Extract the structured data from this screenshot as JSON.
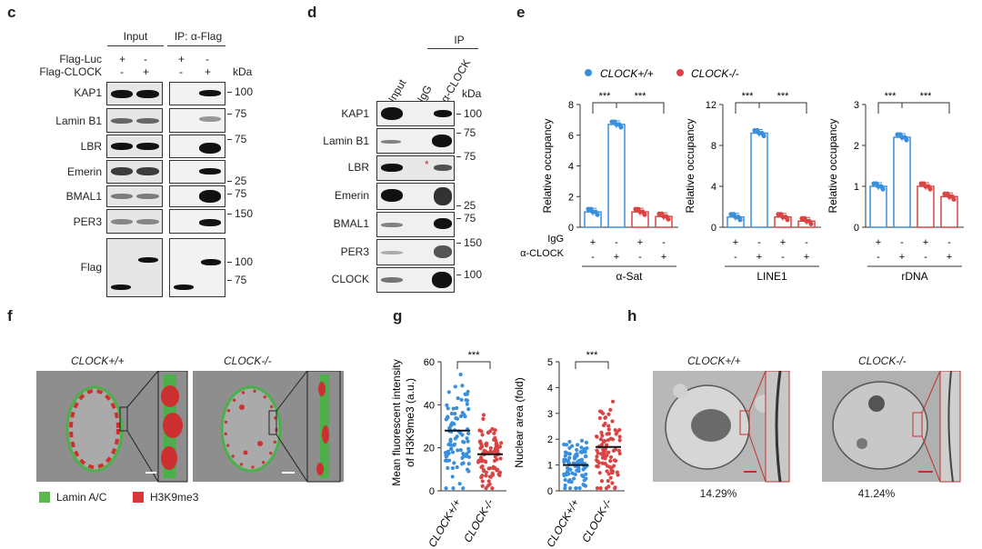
{
  "panels": {
    "c": "c",
    "d": "d",
    "e": "e",
    "f": "f",
    "g": "g",
    "h": "h"
  },
  "c": {
    "input_header": "Input",
    "ip_header": "IP: α-Flag",
    "row_labels": [
      "Flag-Luc",
      "Flag-CLOCK"
    ],
    "signs": {
      "luc": [
        "+",
        "-",
        "+",
        "-"
      ],
      "clock": [
        "-",
        "+",
        "-",
        "+"
      ]
    },
    "kda": "kDa",
    "blots": [
      "KAP1",
      "Lamin B1",
      "LBR",
      "Emerin",
      "BMAL1",
      "PER3",
      "Flag"
    ],
    "markers": [
      "100",
      "75",
      "75",
      "25",
      "75",
      "150",
      "100",
      "75"
    ]
  },
  "d": {
    "ip_header": "IP",
    "lanes": [
      "Input",
      "IgG",
      "α-CLOCK"
    ],
    "kda": "kDa",
    "blots": [
      "KAP1",
      "Lamin B1",
      "LBR",
      "Emerin",
      "BMAL1",
      "PER3",
      "CLOCK"
    ],
    "markers": [
      "100",
      "75",
      "75",
      "25",
      "75",
      "150",
      "100"
    ],
    "asterisk": "*"
  },
  "e": {
    "legend": [
      {
        "name": "CLOCK+/+",
        "color": "#3a8fdc"
      },
      {
        "name": "CLOCK-/-",
        "color": "#d94545"
      }
    ],
    "ylabel": "Relative occupancy",
    "sig": "***",
    "row_igg": "IgG",
    "row_anti": "α-CLOCK",
    "igg_signs": [
      "+",
      "-",
      "+",
      "-"
    ],
    "anti_signs": [
      "-",
      "+",
      "-",
      "+"
    ]
  },
  "chart_data": [
    {
      "type": "bar",
      "xlabel": "α-Sat",
      "ylabel": "Relative occupancy",
      "ylim": [
        0,
        8
      ],
      "yticks": [
        "0",
        "2",
        "4",
        "6",
        "8"
      ],
      "categories": [
        "IgG CLOCK+/+",
        "α-CLOCK CLOCK+/+",
        "IgG CLOCK-/-",
        "α-CLOCK CLOCK-/-"
      ],
      "values": [
        1.0,
        6.7,
        1.0,
        0.7
      ]
    },
    {
      "type": "bar",
      "xlabel": "LINE1",
      "ylabel": "Relative occupancy",
      "ylim": [
        0,
        12
      ],
      "yticks": [
        "0",
        "4",
        "8",
        "12"
      ],
      "categories": [
        "IgG CLOCK+/+",
        "α-CLOCK CLOCK+/+",
        "IgG CLOCK-/-",
        "α-CLOCK CLOCK-/-"
      ],
      "values": [
        1.0,
        9.2,
        1.0,
        0.6
      ]
    },
    {
      "type": "bar",
      "xlabel": "rDNA",
      "ylabel": "Relative occupancy",
      "ylim": [
        0,
        3
      ],
      "yticks": [
        "0",
        "1",
        "2",
        "3"
      ],
      "categories": [
        "IgG CLOCK+/+",
        "α-CLOCK CLOCK+/+",
        "IgG CLOCK-/-",
        "α-CLOCK CLOCK-/-"
      ],
      "values": [
        1.0,
        2.2,
        1.0,
        0.75
      ]
    },
    {
      "type": "scatter",
      "ylabel": "Mean fluorescent intensity of H3K9me3 (a.u.)",
      "ylim": [
        0,
        60
      ],
      "yticks": [
        "0",
        "20",
        "40",
        "60"
      ],
      "categories": [
        "CLOCK+/+",
        "CLOCK-/-"
      ],
      "means": [
        28,
        17
      ]
    },
    {
      "type": "scatter",
      "ylabel": "Nuclear area (fold)",
      "ylim": [
        0,
        5
      ],
      "yticks": [
        "0",
        "1",
        "2",
        "3",
        "4",
        "5"
      ],
      "categories": [
        "CLOCK+/+",
        "CLOCK-/-"
      ],
      "means": [
        1.0,
        1.7
      ]
    }
  ],
  "f": {
    "left_title": "CLOCK+/+",
    "right_title": "CLOCK-/-",
    "legend": [
      "Lamin A/C",
      "H3K9me3"
    ],
    "colors": [
      "#5cb84f",
      "#d9383a"
    ]
  },
  "g": {
    "ylabel1": "Mean fluorescent intensity",
    "ylabel2": "of H3K9me3 (a.u.)",
    "ylabel3": "Nuclear area (fold)",
    "sig": "***",
    "cats": [
      "CLOCK+/+",
      "CLOCK-/-"
    ]
  },
  "h": {
    "left_title": "CLOCK+/+",
    "right_title": "CLOCK-/-",
    "left_pct": "14.29%",
    "right_pct": "41.24%"
  }
}
